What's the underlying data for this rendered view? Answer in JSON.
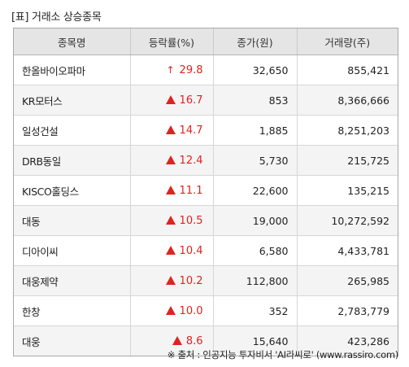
{
  "title": "[표] 거래소 상승종목",
  "columns": [
    "종목명",
    "등락률(%)",
    "종가(원)",
    "거래량(주)"
  ],
  "rows": [
    {
      "name": "한올바이오파마",
      "rate": "29.8",
      "indicator": "up-arrow-icon",
      "price": "32,650",
      "volume": "855,421"
    },
    {
      "name": "KR모터스",
      "rate": "16.7",
      "indicator": "up-triangle-icon",
      "price": "853",
      "volume": "8,366,666"
    },
    {
      "name": "일성건설",
      "rate": "14.7",
      "indicator": "up-triangle-icon",
      "price": "1,885",
      "volume": "8,251,203"
    },
    {
      "name": "DRB동일",
      "rate": "12.4",
      "indicator": "up-triangle-icon",
      "price": "5,730",
      "volume": "215,725"
    },
    {
      "name": "KISCO홀딩스",
      "rate": "11.1",
      "indicator": "up-triangle-icon",
      "price": "22,600",
      "volume": "135,215"
    },
    {
      "name": "대동",
      "rate": "10.5",
      "indicator": "up-triangle-icon",
      "price": "19,000",
      "volume": "10,272,592"
    },
    {
      "name": "디아이씨",
      "rate": "10.4",
      "indicator": "up-triangle-icon",
      "price": "6,580",
      "volume": "4,433,781"
    },
    {
      "name": "대웅제약",
      "rate": "10.2",
      "indicator": "up-triangle-icon",
      "price": "112,800",
      "volume": "265,985"
    },
    {
      "name": "한창",
      "rate": "10.0",
      "indicator": "up-triangle-icon",
      "price": "352",
      "volume": "2,783,779"
    },
    {
      "name": "대웅",
      "rate": "8.6",
      "indicator": "up-triangle-icon",
      "price": "15,640",
      "volume": "423,286"
    }
  ],
  "colors": {
    "rise": "#e0231f",
    "header_bg": "#e5e5e5",
    "stripe_bg": "#f4f4f4"
  },
  "source": "※ 출처 : 인공지능 투자비서 'AI라씨로' (www.rassiro.com)"
}
